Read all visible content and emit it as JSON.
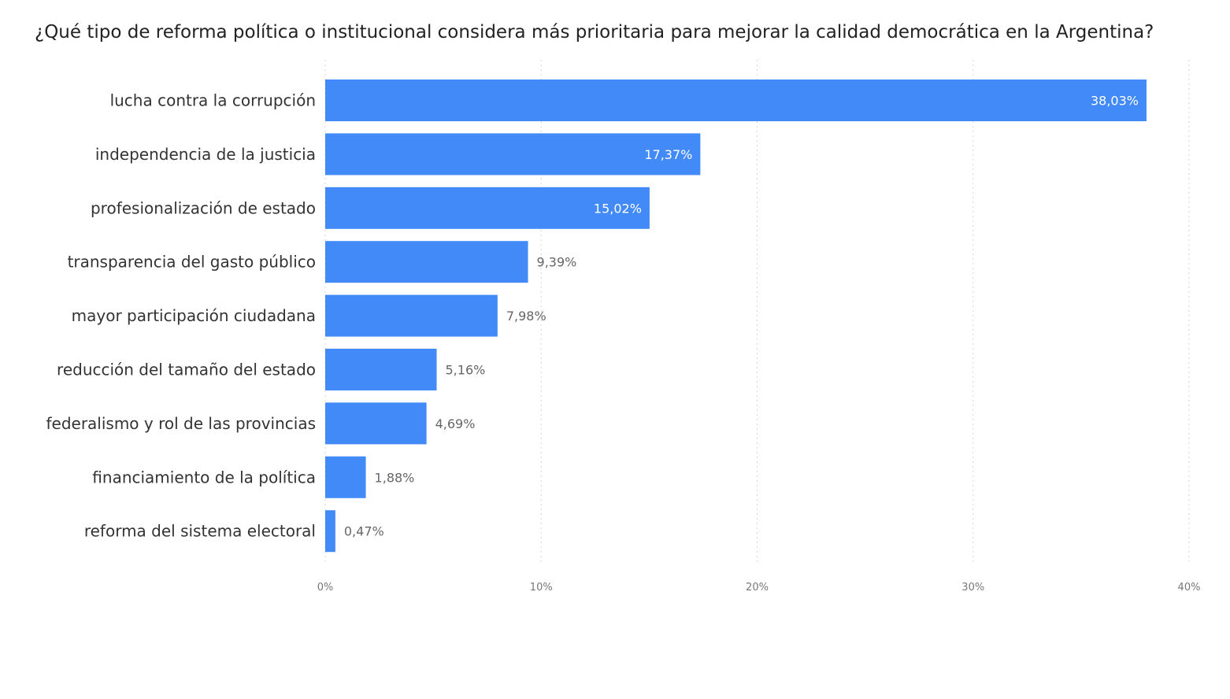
{
  "title": "¿Qué tipo de reforma política o institucional considera más prioritaria para mejorar la calidad democrática en la Argentina?",
  "colors": {
    "bar": "#418af8"
  },
  "chart_data": {
    "type": "bar",
    "orientation": "horizontal",
    "title": "¿Qué tipo de reforma política o institucional considera más prioritaria para mejorar la calidad democrática en la Argentina?",
    "categories": [
      "lucha contra la corrupción",
      "independencia de la justicia",
      "profesionalización de estado",
      "transparencia del gasto público",
      "mayor participación ciudadana",
      "reducción del tamaño del estado",
      "federalismo y rol de las provincias",
      "financiamiento de la política",
      "reforma del sistema electoral"
    ],
    "values": [
      38.03,
      17.37,
      15.02,
      9.39,
      7.98,
      5.16,
      4.69,
      1.88,
      0.47
    ],
    "value_labels": [
      "38,03%",
      "17,37%",
      "15,02%",
      "9,39%",
      "7,98%",
      "5,16%",
      "4,69%",
      "1,88%",
      "0,47%"
    ],
    "xlim": [
      0,
      40
    ],
    "xticks": [
      0,
      10,
      20,
      30,
      40
    ],
    "xtick_labels": [
      "0%",
      "10%",
      "20%",
      "30%",
      "40%"
    ],
    "grid": "vertical dotted",
    "legend": "none"
  }
}
